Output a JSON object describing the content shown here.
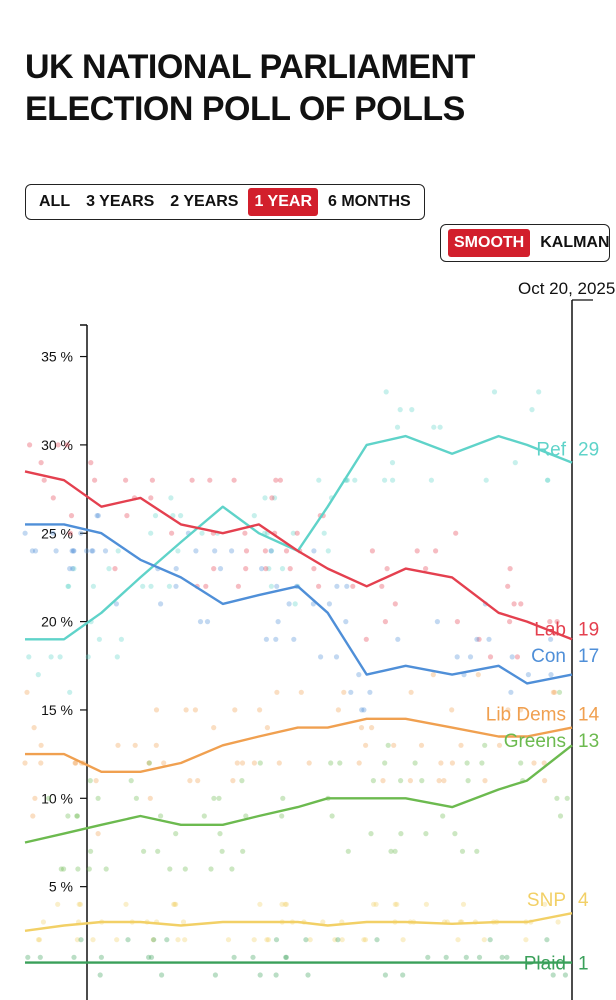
{
  "title": "UK NATIONAL PARLIAMENT ELECTION POLL OF POLLS",
  "range_buttons": [
    "ALL",
    "3 YEARS",
    "2 YEARS",
    "1 YEAR",
    "6 MONTHS"
  ],
  "range_selected": "1 YEAR",
  "mode_buttons": [
    "SMOOTH",
    "KALMAN"
  ],
  "mode_selected": "SMOOTH",
  "colors": {
    "accent": "#d21f2c"
  },
  "chart_data": {
    "type": "line",
    "cursor_date_label": "Oct 20, 2025",
    "x_range": [
      "2024-10-20",
      "2025-10-20"
    ],
    "ylim": [
      0,
      38
    ],
    "yticks": [
      5,
      10,
      15,
      20,
      25,
      30,
      35
    ],
    "ytick_labels": [
      "5 %",
      "10 %",
      "15 %",
      "20 %",
      "25 %",
      "30 %",
      "35 %"
    ],
    "grid": false,
    "scatter_points_shown": true,
    "legend": "inline-right",
    "series": [
      {
        "name": "Ref",
        "end_label": "Ref 29",
        "color": "#5fd3c9",
        "x": [
          "2024-10-20",
          "2024-11-15",
          "2024-12-10",
          "2025-01-05",
          "2025-02-01",
          "2025-03-01",
          "2025-03-25",
          "2025-04-20",
          "2025-05-10",
          "2025-06-05",
          "2025-07-01",
          "2025-08-01",
          "2025-09-01",
          "2025-09-20",
          "2025-10-20"
        ],
        "values": [
          19,
          19,
          20.5,
          22.5,
          24.5,
          26.5,
          25,
          24,
          26.5,
          30,
          30.5,
          29.5,
          30.5,
          30,
          29
        ]
      },
      {
        "name": "Lab",
        "end_label": "Lab 19",
        "color": "#e4404f",
        "x": [
          "2024-10-20",
          "2024-11-15",
          "2024-12-10",
          "2025-01-05",
          "2025-02-01",
          "2025-03-01",
          "2025-03-25",
          "2025-04-20",
          "2025-05-10",
          "2025-06-05",
          "2025-07-01",
          "2025-08-01",
          "2025-09-01",
          "2025-09-20",
          "2025-10-20"
        ],
        "values": [
          28.5,
          28,
          26.5,
          27,
          25.5,
          25,
          25.5,
          24,
          23,
          22,
          23,
          22.5,
          20.5,
          20,
          19
        ]
      },
      {
        "name": "Con",
        "end_label": "Con 17",
        "color": "#4f8fd8",
        "x": [
          "2024-10-20",
          "2024-11-15",
          "2024-12-10",
          "2025-01-05",
          "2025-02-01",
          "2025-03-01",
          "2025-03-25",
          "2025-04-20",
          "2025-05-10",
          "2025-06-05",
          "2025-07-01",
          "2025-08-01",
          "2025-09-01",
          "2025-09-20",
          "2025-10-20"
        ],
        "values": [
          25.5,
          25.5,
          25,
          23.5,
          22.5,
          21,
          21.5,
          22,
          20.5,
          17,
          17.5,
          17,
          17.5,
          16.5,
          17
        ]
      },
      {
        "name": "Lib Dems",
        "end_label": "Lib Dems 14",
        "color": "#f0a050",
        "x": [
          "2024-10-20",
          "2024-11-15",
          "2024-12-10",
          "2025-01-05",
          "2025-02-01",
          "2025-03-01",
          "2025-03-25",
          "2025-04-20",
          "2025-05-10",
          "2025-06-05",
          "2025-07-01",
          "2025-08-01",
          "2025-09-01",
          "2025-09-20",
          "2025-10-20"
        ],
        "values": [
          12.5,
          12.5,
          11.5,
          11.5,
          12,
          13,
          13.5,
          14,
          14,
          14.5,
          14.5,
          14,
          13.5,
          13.5,
          14
        ]
      },
      {
        "name": "Greens",
        "end_label": "Greens 13",
        "color": "#6cba4f",
        "x": [
          "2024-10-20",
          "2024-11-15",
          "2024-12-10",
          "2025-01-05",
          "2025-02-01",
          "2025-03-01",
          "2025-03-25",
          "2025-04-20",
          "2025-05-10",
          "2025-06-05",
          "2025-07-01",
          "2025-08-01",
          "2025-09-01",
          "2025-09-20",
          "2025-10-20"
        ],
        "values": [
          7.5,
          8,
          8.5,
          9,
          8.5,
          8.5,
          9,
          9.5,
          10,
          10,
          10,
          9.5,
          10.5,
          11,
          13
        ]
      },
      {
        "name": "SNP",
        "end_label": "SNP 4",
        "color": "#f2d066",
        "x": [
          "2024-10-20",
          "2024-11-15",
          "2024-12-10",
          "2025-01-05",
          "2025-02-01",
          "2025-03-01",
          "2025-03-25",
          "2025-04-20",
          "2025-05-10",
          "2025-06-05",
          "2025-07-01",
          "2025-08-01",
          "2025-09-01",
          "2025-09-20",
          "2025-10-20"
        ],
        "values": [
          2.5,
          2.8,
          3,
          3,
          2.8,
          3,
          3,
          3,
          2.8,
          3,
          3,
          2.9,
          3,
          3,
          3.5
        ]
      },
      {
        "name": "Plaid",
        "end_label": "Plaid 1",
        "color": "#3aa05a",
        "x": [
          "2024-10-20",
          "2025-10-20"
        ],
        "values": [
          0.7,
          0.7
        ]
      }
    ]
  }
}
